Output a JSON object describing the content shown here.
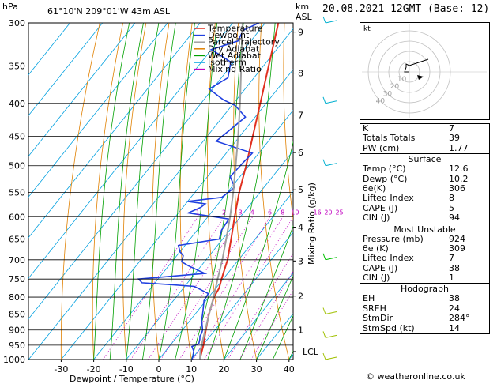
{
  "header": {
    "hpa": "hPa",
    "location": "61°10'N  209°01'W  43m  ASL",
    "km": "km",
    "asl": "ASL",
    "date": "20.08.2021  12GMT  (Base: 12)"
  },
  "legend": {
    "items": [
      {
        "label": "Temperature",
        "color": "#e03020"
      },
      {
        "label": "Dewpoint",
        "color": "#2040e0"
      },
      {
        "label": "Parcel Trajectory",
        "color": "#a0a0a0"
      },
      {
        "label": "Dry Adiabat",
        "color": "#e08000"
      },
      {
        "label": "Wet Adiabat",
        "color": "#00a000"
      },
      {
        "label": "Isotherm",
        "color": "#00a0e0"
      },
      {
        "label": "Mixing Ratio",
        "color": "#c000c0"
      }
    ]
  },
  "chart_data": {
    "type": "line",
    "xlabel": "Dewpoint / Temperature (°C)",
    "ylabel_right": "Mixing Ratio (g/kg)",
    "pressure_levels": [
      300,
      350,
      400,
      450,
      500,
      550,
      600,
      650,
      700,
      750,
      800,
      850,
      900,
      950,
      1000
    ],
    "x_ticks": [
      -30,
      -20,
      -10,
      0,
      10,
      20,
      30,
      40
    ],
    "km_ticks": [
      {
        "label": "9",
        "p": 310
      },
      {
        "label": "8",
        "p": 359
      },
      {
        "label": "7",
        "p": 417
      },
      {
        "label": "6",
        "p": 477
      },
      {
        "label": "5",
        "p": 545
      },
      {
        "label": "4",
        "p": 623
      },
      {
        "label": "3",
        "p": 703
      },
      {
        "label": "2",
        "p": 797
      },
      {
        "label": "1",
        "p": 900
      },
      {
        "label": "LCL",
        "p": 972
      }
    ],
    "mixing_ratio_labels": [
      "1",
      "2",
      "3",
      "4",
      "6",
      "8",
      "10",
      "16",
      "20",
      "25"
    ],
    "series": [
      {
        "name": "Temperature",
        "points": [
          [
            1000,
            12.6
          ],
          [
            975,
            11.4
          ],
          [
            950,
            10.2
          ],
          [
            925,
            8.7
          ],
          [
            900,
            7.2
          ],
          [
            850,
            4.2
          ],
          [
            800,
            1.6
          ],
          [
            775,
            1.0
          ],
          [
            750,
            -0.5
          ],
          [
            700,
            -3.4
          ],
          [
            650,
            -7.4
          ],
          [
            600,
            -11.8
          ],
          [
            550,
            -16.4
          ],
          [
            500,
            -20.8
          ],
          [
            450,
            -26.0
          ],
          [
            400,
            -31.8
          ],
          [
            350,
            -38.4
          ],
          [
            300,
            -46.0
          ]
        ]
      },
      {
        "name": "Dewpoint",
        "points": [
          [
            1000,
            10.2
          ],
          [
            985,
            9.5
          ],
          [
            970,
            8.6
          ],
          [
            955,
            7.0
          ],
          [
            945,
            8.4
          ],
          [
            930,
            7.6
          ],
          [
            920,
            6.9
          ],
          [
            910,
            6.7
          ],
          [
            900,
            6.2
          ],
          [
            870,
            3.6
          ],
          [
            840,
            1.6
          ],
          [
            810,
            -0.6
          ],
          [
            790,
            -1.0
          ],
          [
            770,
            -7.0
          ],
          [
            765,
            -15.0
          ],
          [
            760,
            -24.0
          ],
          [
            750,
            -26.0
          ],
          [
            735,
            -7.0
          ],
          [
            715,
            -14.0
          ],
          [
            705,
            -17.0
          ],
          [
            690,
            -18.0
          ],
          [
            680,
            -20.0
          ],
          [
            665,
            -22.0
          ],
          [
            650,
            -11.0
          ],
          [
            630,
            -12.5
          ],
          [
            605,
            -13.0
          ],
          [
            592,
            -27.0
          ],
          [
            580,
            -24.5
          ],
          [
            573,
            -24.0
          ],
          [
            568,
            -30.0
          ],
          [
            560,
            -20.5
          ],
          [
            540,
            -19.0
          ],
          [
            520,
            -23.0
          ],
          [
            495,
            -22.5
          ],
          [
            478,
            -22.0
          ],
          [
            458,
            -36.0
          ],
          [
            420,
            -33.0
          ],
          [
            403,
            -39.0
          ],
          [
            395,
            -44.0
          ],
          [
            380,
            -51.0
          ],
          [
            365,
            -48.0
          ],
          [
            345,
            -51.0
          ],
          [
            330,
            -60.0
          ],
          [
            320,
            -54.0
          ],
          [
            308,
            -55.0
          ],
          [
            300,
            -52.0
          ]
        ]
      },
      {
        "name": "Parcel Trajectory",
        "points": [
          [
            1000,
            12.6
          ],
          [
            972,
            10.8
          ],
          [
            950,
            9.6
          ],
          [
            900,
            7.0
          ],
          [
            850,
            4.3
          ],
          [
            800,
            1.5
          ],
          [
            750,
            -1.7
          ],
          [
            700,
            -5.0
          ],
          [
            650,
            -8.9
          ],
          [
            600,
            -13.2
          ],
          [
            550,
            -18.2
          ],
          [
            500,
            -24.0
          ],
          [
            450,
            -30.5
          ],
          [
            400,
            -38.0
          ],
          [
            350,
            -46.8
          ],
          [
            300,
            -57.0
          ]
        ]
      }
    ],
    "wind_barbs": [
      {
        "p": 300,
        "color": "#00b0d0"
      },
      {
        "p": 400,
        "color": "#00b0d0"
      },
      {
        "p": 500,
        "color": "#00b0d0"
      },
      {
        "p": 700,
        "color": "#00c000"
      },
      {
        "p": 850,
        "color": "#a0c000"
      },
      {
        "p": 925,
        "color": "#a0c000"
      },
      {
        "p": 1000,
        "color": "#a0c000"
      }
    ]
  },
  "hodograph": {
    "label": "kt",
    "rings": [
      "10",
      "20",
      "30",
      "40"
    ],
    "points": [
      [
        0,
        0
      ],
      [
        -6,
        0
      ],
      [
        -4,
        -6
      ],
      [
        -4,
        -10
      ],
      [
        0,
        -8
      ],
      [
        12,
        -12
      ],
      [
        24,
        -16
      ]
    ]
  },
  "indices": {
    "rows": [
      {
        "k": "K",
        "v": "7"
      },
      {
        "k": "Totals Totals",
        "v": "39"
      },
      {
        "k": "PW (cm)",
        "v": "1.77"
      }
    ]
  },
  "surface": {
    "title": "Surface",
    "rows": [
      {
        "k": "Temp (°C)",
        "v": "12.6"
      },
      {
        "k": "Dewp (°C)",
        "v": "10.2"
      },
      {
        "k": "θe(K)",
        "v": "306"
      },
      {
        "k": "Lifted Index",
        "v": "8"
      },
      {
        "k": "CAPE (J)",
        "v": "5"
      },
      {
        "k": "CIN (J)",
        "v": "94"
      }
    ]
  },
  "most_unstable": {
    "title": "Most Unstable",
    "rows": [
      {
        "k": "Pressure (mb)",
        "v": "924"
      },
      {
        "k": "θe (K)",
        "v": "309"
      },
      {
        "k": "Lifted Index",
        "v": "7"
      },
      {
        "k": "CAPE (J)",
        "v": "38"
      },
      {
        "k": "CIN (J)",
        "v": "1"
      }
    ]
  },
  "hodo_stats": {
    "title": "Hodograph",
    "rows": [
      {
        "k": "EH",
        "v": "38"
      },
      {
        "k": "SREH",
        "v": "24"
      },
      {
        "k": "StmDir",
        "v": "284°"
      },
      {
        "k": "StmSpd (kt)",
        "v": "14"
      }
    ]
  },
  "copyright": "© weatheronline.co.uk"
}
